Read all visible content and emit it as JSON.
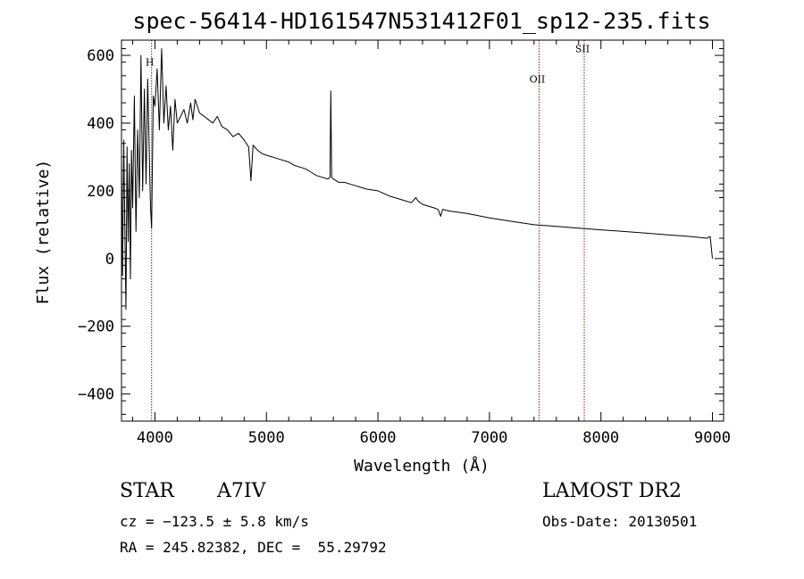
{
  "chart_data": {
    "type": "line",
    "title": "spec-56414-HD161547N531412F01_sp12-235.fits",
    "xlabel": "Wavelength (Å)",
    "ylabel": "Flux (relative)",
    "xlim": [
      3700,
      9100
    ],
    "ylim": [
      -480,
      645
    ],
    "xticks": [
      4000,
      5000,
      6000,
      7000,
      8000,
      9000
    ],
    "yticks": [
      -400,
      -200,
      0,
      200,
      400,
      600
    ],
    "grid": false,
    "line_color": "#000000",
    "marker_color": "#8b1a1a",
    "lines": [
      {
        "label": "H",
        "x": 3970,
        "label_y": 570
      },
      {
        "label": "OII",
        "x": 7445,
        "label_y": 520
      },
      {
        "label": "SII",
        "x": 7850,
        "label_y": 610
      }
    ],
    "series": [
      {
        "x": [
          3700,
          3710,
          3720,
          3730,
          3740,
          3750,
          3760,
          3770,
          3780,
          3790,
          3800,
          3815,
          3830,
          3845,
          3860,
          3875,
          3890,
          3905,
          3920,
          3935,
          3950,
          3960,
          3970,
          3985,
          4000,
          4020,
          4040,
          4060,
          4080,
          4100,
          4120,
          4140,
          4160,
          4180,
          4200,
          4230,
          4260,
          4290,
          4320,
          4340,
          4360,
          4400,
          4440,
          4480,
          4520,
          4560,
          4600,
          4650,
          4700,
          4750,
          4800,
          4840,
          4861,
          4880,
          4920,
          4960,
          5000,
          5050,
          5100,
          5150,
          5200,
          5250,
          5300,
          5350,
          5400,
          5450,
          5500,
          5550,
          5570,
          5577,
          5585,
          5600,
          5650,
          5700,
          5750,
          5800,
          5850,
          5900,
          6000,
          6100,
          6200,
          6300,
          6340,
          6360,
          6400,
          6500,
          6540,
          6563,
          6580,
          6650,
          6800,
          7000,
          7200,
          7400,
          7600,
          7800,
          8000,
          8200,
          8400,
          8600,
          8800,
          8950,
          8980,
          9000
        ],
        "y": [
          300,
          -50,
          350,
          100,
          -150,
          330,
          50,
          280,
          -60,
          320,
          150,
          480,
          80,
          380,
          180,
          600,
          200,
          500,
          220,
          530,
          300,
          150,
          90,
          480,
          450,
          560,
          380,
          620,
          400,
          510,
          380,
          450,
          320,
          470,
          400,
          420,
          440,
          400,
          460,
          410,
          470,
          430,
          420,
          410,
          400,
          420,
          390,
          380,
          360,
          370,
          350,
          330,
          230,
          335,
          320,
          310,
          305,
          300,
          295,
          290,
          285,
          275,
          270,
          265,
          255,
          245,
          240,
          235,
          240,
          495,
          240,
          235,
          225,
          225,
          220,
          215,
          210,
          205,
          200,
          185,
          175,
          165,
          180,
          170,
          160,
          150,
          145,
          125,
          145,
          140,
          133,
          120,
          110,
          100,
          95,
          90,
          85,
          80,
          75,
          70,
          65,
          60,
          65,
          0
        ]
      }
    ]
  },
  "info": {
    "object_type": "STAR",
    "spectral_class": "A7IV",
    "survey": "LAMOST DR2",
    "velocity": "cz = −123.5 ± 5.8 km/s",
    "obs_date": "Obs-Date: 20130501",
    "coords": "RA = 245.82382, DEC =  55.29792"
  }
}
